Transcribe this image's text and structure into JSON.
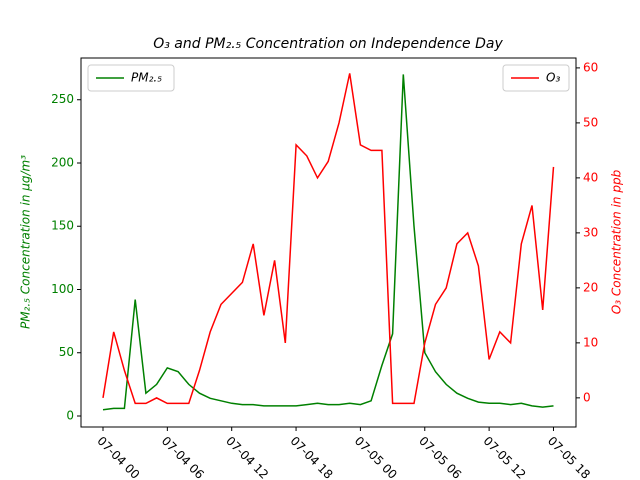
{
  "chart_data": {
    "type": "line",
    "title": "O₃ and PM₂.₅ Concentration on Independence Day",
    "ylabel": "PM₂.₅ Concentration in μg/m³",
    "y2label": "O₃ Concentration in ppb",
    "x": [
      0,
      1,
      2,
      3,
      4,
      5,
      6,
      7,
      8,
      9,
      10,
      11,
      12,
      13,
      14,
      15,
      16,
      17,
      18,
      19,
      20,
      21,
      22,
      23,
      24,
      25,
      26,
      27,
      28,
      29,
      30,
      31,
      32,
      33,
      34,
      35,
      36,
      37,
      38,
      39,
      40,
      41,
      42
    ],
    "xlim": [
      -2.05,
      44.1
    ],
    "xticks": [
      {
        "value": 0,
        "label": "07-04 00"
      },
      {
        "value": 6,
        "label": "07-04 06"
      },
      {
        "value": 12,
        "label": "07-04 12"
      },
      {
        "value": 18,
        "label": "07-04 18"
      },
      {
        "value": 24,
        "label": "07-05 00"
      },
      {
        "value": 30,
        "label": "07-05 06"
      },
      {
        "value": 36,
        "label": "07-05 12"
      },
      {
        "value": 42,
        "label": "07-05 18"
      }
    ],
    "ylim": [
      -8.7,
      283
    ],
    "yticks": [
      0,
      50,
      100,
      150,
      200,
      250
    ],
    "y2lim": [
      -5.3,
      61.8
    ],
    "y2ticks": [
      0,
      10,
      20,
      30,
      40,
      50,
      60
    ],
    "series": [
      {
        "name": "PM₂.₅",
        "color": "#008000",
        "axis": "y",
        "legend": "upper left",
        "values": [
          5,
          6,
          6,
          92,
          18,
          25,
          38,
          35,
          25,
          18,
          14,
          12,
          10,
          9,
          9,
          8,
          8,
          8,
          8,
          9,
          10,
          9,
          9,
          10,
          9,
          12,
          40,
          65,
          270,
          150,
          50,
          35,
          25,
          18,
          14,
          11,
          10,
          10,
          9,
          10,
          8,
          7,
          8
        ]
      },
      {
        "name": "O₃",
        "color": "#ff0000",
        "axis": "y2",
        "legend": "upper right",
        "values": [
          0,
          12,
          5,
          -1,
          -1,
          0,
          -1,
          -1,
          -1,
          5,
          12,
          17,
          19,
          21,
          28,
          15,
          25,
          10,
          46,
          44,
          40,
          43,
          50,
          59,
          46,
          45,
          45,
          -1,
          -1,
          -1,
          10,
          17,
          20,
          28,
          30,
          24,
          7,
          12,
          10,
          28,
          35,
          16,
          42
        ]
      }
    ]
  }
}
